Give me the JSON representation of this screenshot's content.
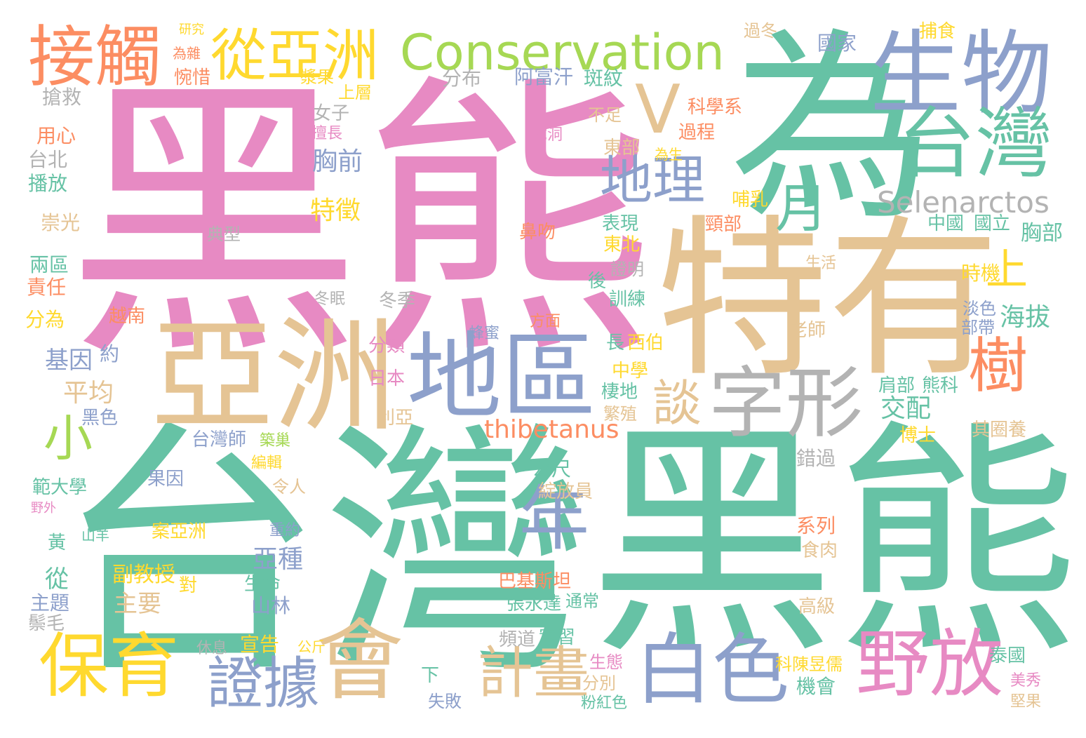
{
  "palette": {
    "pink": "#e78ac3",
    "green": "#66c2a5",
    "orange": "#fc8d62",
    "blue": "#8da0cb",
    "lime": "#a6d854",
    "yellow": "#ffd92f",
    "tan": "#e5c494",
    "gray": "#b3b3b3"
  },
  "words": [
    {
      "text": "黑熊",
      "color": "pink"
    },
    {
      "text": "為",
      "color": "green"
    },
    {
      "text": "台灣",
      "color": "green"
    },
    {
      "text": "黑熊",
      "color": "green"
    },
    {
      "text": "特有",
      "color": "tan"
    },
    {
      "text": "亞洲",
      "color": "tan"
    },
    {
      "text": "地區",
      "color": "blue"
    },
    {
      "text": "生物",
      "color": "blue"
    },
    {
      "text": "台灣",
      "color": "green"
    },
    {
      "text": "接觸",
      "color": "orange"
    },
    {
      "text": "從亞洲",
      "color": "yellow"
    },
    {
      "text": "Conservation",
      "color": "lime"
    },
    {
      "text": "V",
      "color": "tan"
    },
    {
      "text": "地理",
      "color": "blue"
    },
    {
      "text": "月",
      "color": "green"
    },
    {
      "text": "字形",
      "color": "gray"
    },
    {
      "text": "樹",
      "color": "orange"
    },
    {
      "text": "上",
      "color": "yellow"
    },
    {
      "text": "Selenarctos",
      "color": "gray"
    },
    {
      "text": "談",
      "color": "tan"
    },
    {
      "text": "小",
      "color": "lime"
    },
    {
      "text": "年",
      "color": "blue"
    },
    {
      "text": "會",
      "color": "tan"
    },
    {
      "text": "保育",
      "color": "yellow"
    },
    {
      "text": "證據",
      "color": "blue"
    },
    {
      "text": "計畫",
      "color": "tan"
    },
    {
      "text": "白色",
      "color": "blue"
    },
    {
      "text": "野放",
      "color": "pink"
    },
    {
      "text": "thibetanus",
      "color": "orange"
    },
    {
      "text": "交配",
      "color": "green"
    },
    {
      "text": "海拔",
      "color": "green"
    },
    {
      "text": "胸前",
      "color": "blue"
    },
    {
      "text": "特徵",
      "color": "yellow"
    },
    {
      "text": "平均",
      "color": "tan"
    },
    {
      "text": "基因",
      "color": "blue"
    },
    {
      "text": "搶救",
      "color": "gray"
    },
    {
      "text": "用心",
      "color": "orange"
    },
    {
      "text": "台北",
      "color": "gray"
    },
    {
      "text": "播放",
      "color": "green"
    },
    {
      "text": "崇光",
      "color": "tan"
    },
    {
      "text": "兩區",
      "color": "green"
    },
    {
      "text": "責任",
      "color": "orange"
    },
    {
      "text": "分為",
      "color": "yellow"
    },
    {
      "text": "黑色",
      "color": "blue"
    },
    {
      "text": "約",
      "color": "blue"
    },
    {
      "text": "從",
      "color": "green"
    },
    {
      "text": "主題",
      "color": "blue"
    },
    {
      "text": "鬃毛",
      "color": "gray"
    },
    {
      "text": "黃",
      "color": "green"
    },
    {
      "text": "範大學",
      "color": "green"
    },
    {
      "text": "副教授",
      "color": "yellow"
    },
    {
      "text": "主要",
      "color": "tan"
    },
    {
      "text": "對",
      "color": "yellow"
    },
    {
      "text": "亞種",
      "color": "blue"
    },
    {
      "text": "生命",
      "color": "green"
    },
    {
      "text": "山林",
      "color": "blue"
    },
    {
      "text": "宣告",
      "color": "yellow"
    },
    {
      "text": "分布",
      "color": "gray"
    },
    {
      "text": "阿富汗",
      "color": "blue"
    },
    {
      "text": "斑紋",
      "color": "green"
    },
    {
      "text": "國家",
      "color": "blue"
    },
    {
      "text": "捕食",
      "color": "yellow"
    },
    {
      "text": "過冬",
      "color": "tan"
    },
    {
      "text": "研究",
      "color": "yellow"
    },
    {
      "text": "為雜",
      "color": "orange"
    },
    {
      "text": "惋惜",
      "color": "orange"
    },
    {
      "text": "漿果",
      "color": "yellow"
    },
    {
      "text": "上層",
      "color": "yellow"
    },
    {
      "text": "科學系",
      "color": "orange"
    },
    {
      "text": "過程",
      "color": "orange"
    },
    {
      "text": "東部",
      "color": "tan"
    },
    {
      "text": "頸部",
      "color": "orange"
    },
    {
      "text": "表現",
      "color": "green"
    },
    {
      "text": "東北",
      "color": "yellow"
    },
    {
      "text": "鼻吻",
      "color": "orange"
    },
    {
      "text": "中國",
      "color": "green"
    },
    {
      "text": "國立",
      "color": "green"
    },
    {
      "text": "胸部",
      "color": "green"
    },
    {
      "text": "時機",
      "color": "yellow"
    },
    {
      "text": "淡色",
      "color": "blue"
    },
    {
      "text": "部帶",
      "color": "blue"
    },
    {
      "text": "老師",
      "color": "tan"
    },
    {
      "text": "熊科",
      "color": "green"
    },
    {
      "text": "肩部",
      "color": "green"
    },
    {
      "text": "西伯",
      "color": "yellow"
    },
    {
      "text": "中學",
      "color": "yellow"
    },
    {
      "text": "棲地",
      "color": "green"
    },
    {
      "text": "繁殖",
      "color": "tan"
    },
    {
      "text": "日本",
      "color": "pink"
    },
    {
      "text": "利亞",
      "color": "tan"
    },
    {
      "text": "分類",
      "color": "pink"
    },
    {
      "text": "台灣師",
      "color": "blue"
    },
    {
      "text": "公尺",
      "color": "green"
    },
    {
      "text": "綻放員",
      "color": "tan"
    },
    {
      "text": "巴基斯坦",
      "color": "orange"
    },
    {
      "text": "張永達",
      "color": "green"
    },
    {
      "text": "通常",
      "color": "green"
    },
    {
      "text": "頻道",
      "color": "gray"
    },
    {
      "text": "實習",
      "color": "green"
    },
    {
      "text": "分別",
      "color": "tan"
    },
    {
      "text": "生態",
      "color": "pink"
    },
    {
      "text": "粉紅色",
      "color": "green"
    },
    {
      "text": "機會",
      "color": "green"
    },
    {
      "text": "科陳昱儒",
      "color": "yellow"
    },
    {
      "text": "泰國",
      "color": "green"
    },
    {
      "text": "美秀",
      "color": "pink"
    },
    {
      "text": "堅果",
      "color": "tan"
    },
    {
      "text": "系列",
      "color": "orange"
    },
    {
      "text": "食肉",
      "color": "tan"
    },
    {
      "text": "高級",
      "color": "tan"
    },
    {
      "text": "錯過",
      "color": "gray"
    },
    {
      "text": "博士",
      "color": "yellow"
    },
    {
      "text": "其圈養",
      "color": "tan"
    },
    {
      "text": "冬季",
      "color": "gray"
    },
    {
      "text": "冬眠",
      "color": "gray"
    },
    {
      "text": "越南",
      "color": "orange"
    },
    {
      "text": "方面",
      "color": "orange"
    },
    {
      "text": "蜂蜜",
      "color": "blue"
    },
    {
      "text": "訓練",
      "color": "green"
    },
    {
      "text": "證明",
      "color": "gray"
    },
    {
      "text": "果因",
      "color": "blue"
    },
    {
      "text": "案亞洲",
      "color": "yellow"
    },
    {
      "text": "令人",
      "color": "tan"
    },
    {
      "text": "編輯",
      "color": "yellow"
    },
    {
      "text": "築巢",
      "color": "lime"
    },
    {
      "text": "失敗",
      "color": "blue"
    },
    {
      "text": "下",
      "color": "green"
    },
    {
      "text": "休息",
      "color": "gray"
    },
    {
      "text": "公斤",
      "color": "yellow"
    },
    {
      "text": "山羊",
      "color": "green"
    },
    {
      "text": "野外",
      "color": "pink"
    },
    {
      "text": "重約",
      "color": "blue"
    },
    {
      "text": "長",
      "color": "green"
    },
    {
      "text": "女子",
      "color": "gray"
    },
    {
      "text": "不足",
      "color": "tan"
    },
    {
      "text": "挖洞",
      "color": "pink"
    },
    {
      "text": "擅長",
      "color": "pink"
    },
    {
      "text": "為生",
      "color": "yellow"
    },
    {
      "text": "哺乳",
      "color": "yellow"
    },
    {
      "text": "典型",
      "color": "gray"
    },
    {
      "text": "生活",
      "color": "tan"
    },
    {
      "text": "後",
      "color": "green"
    }
  ]
}
